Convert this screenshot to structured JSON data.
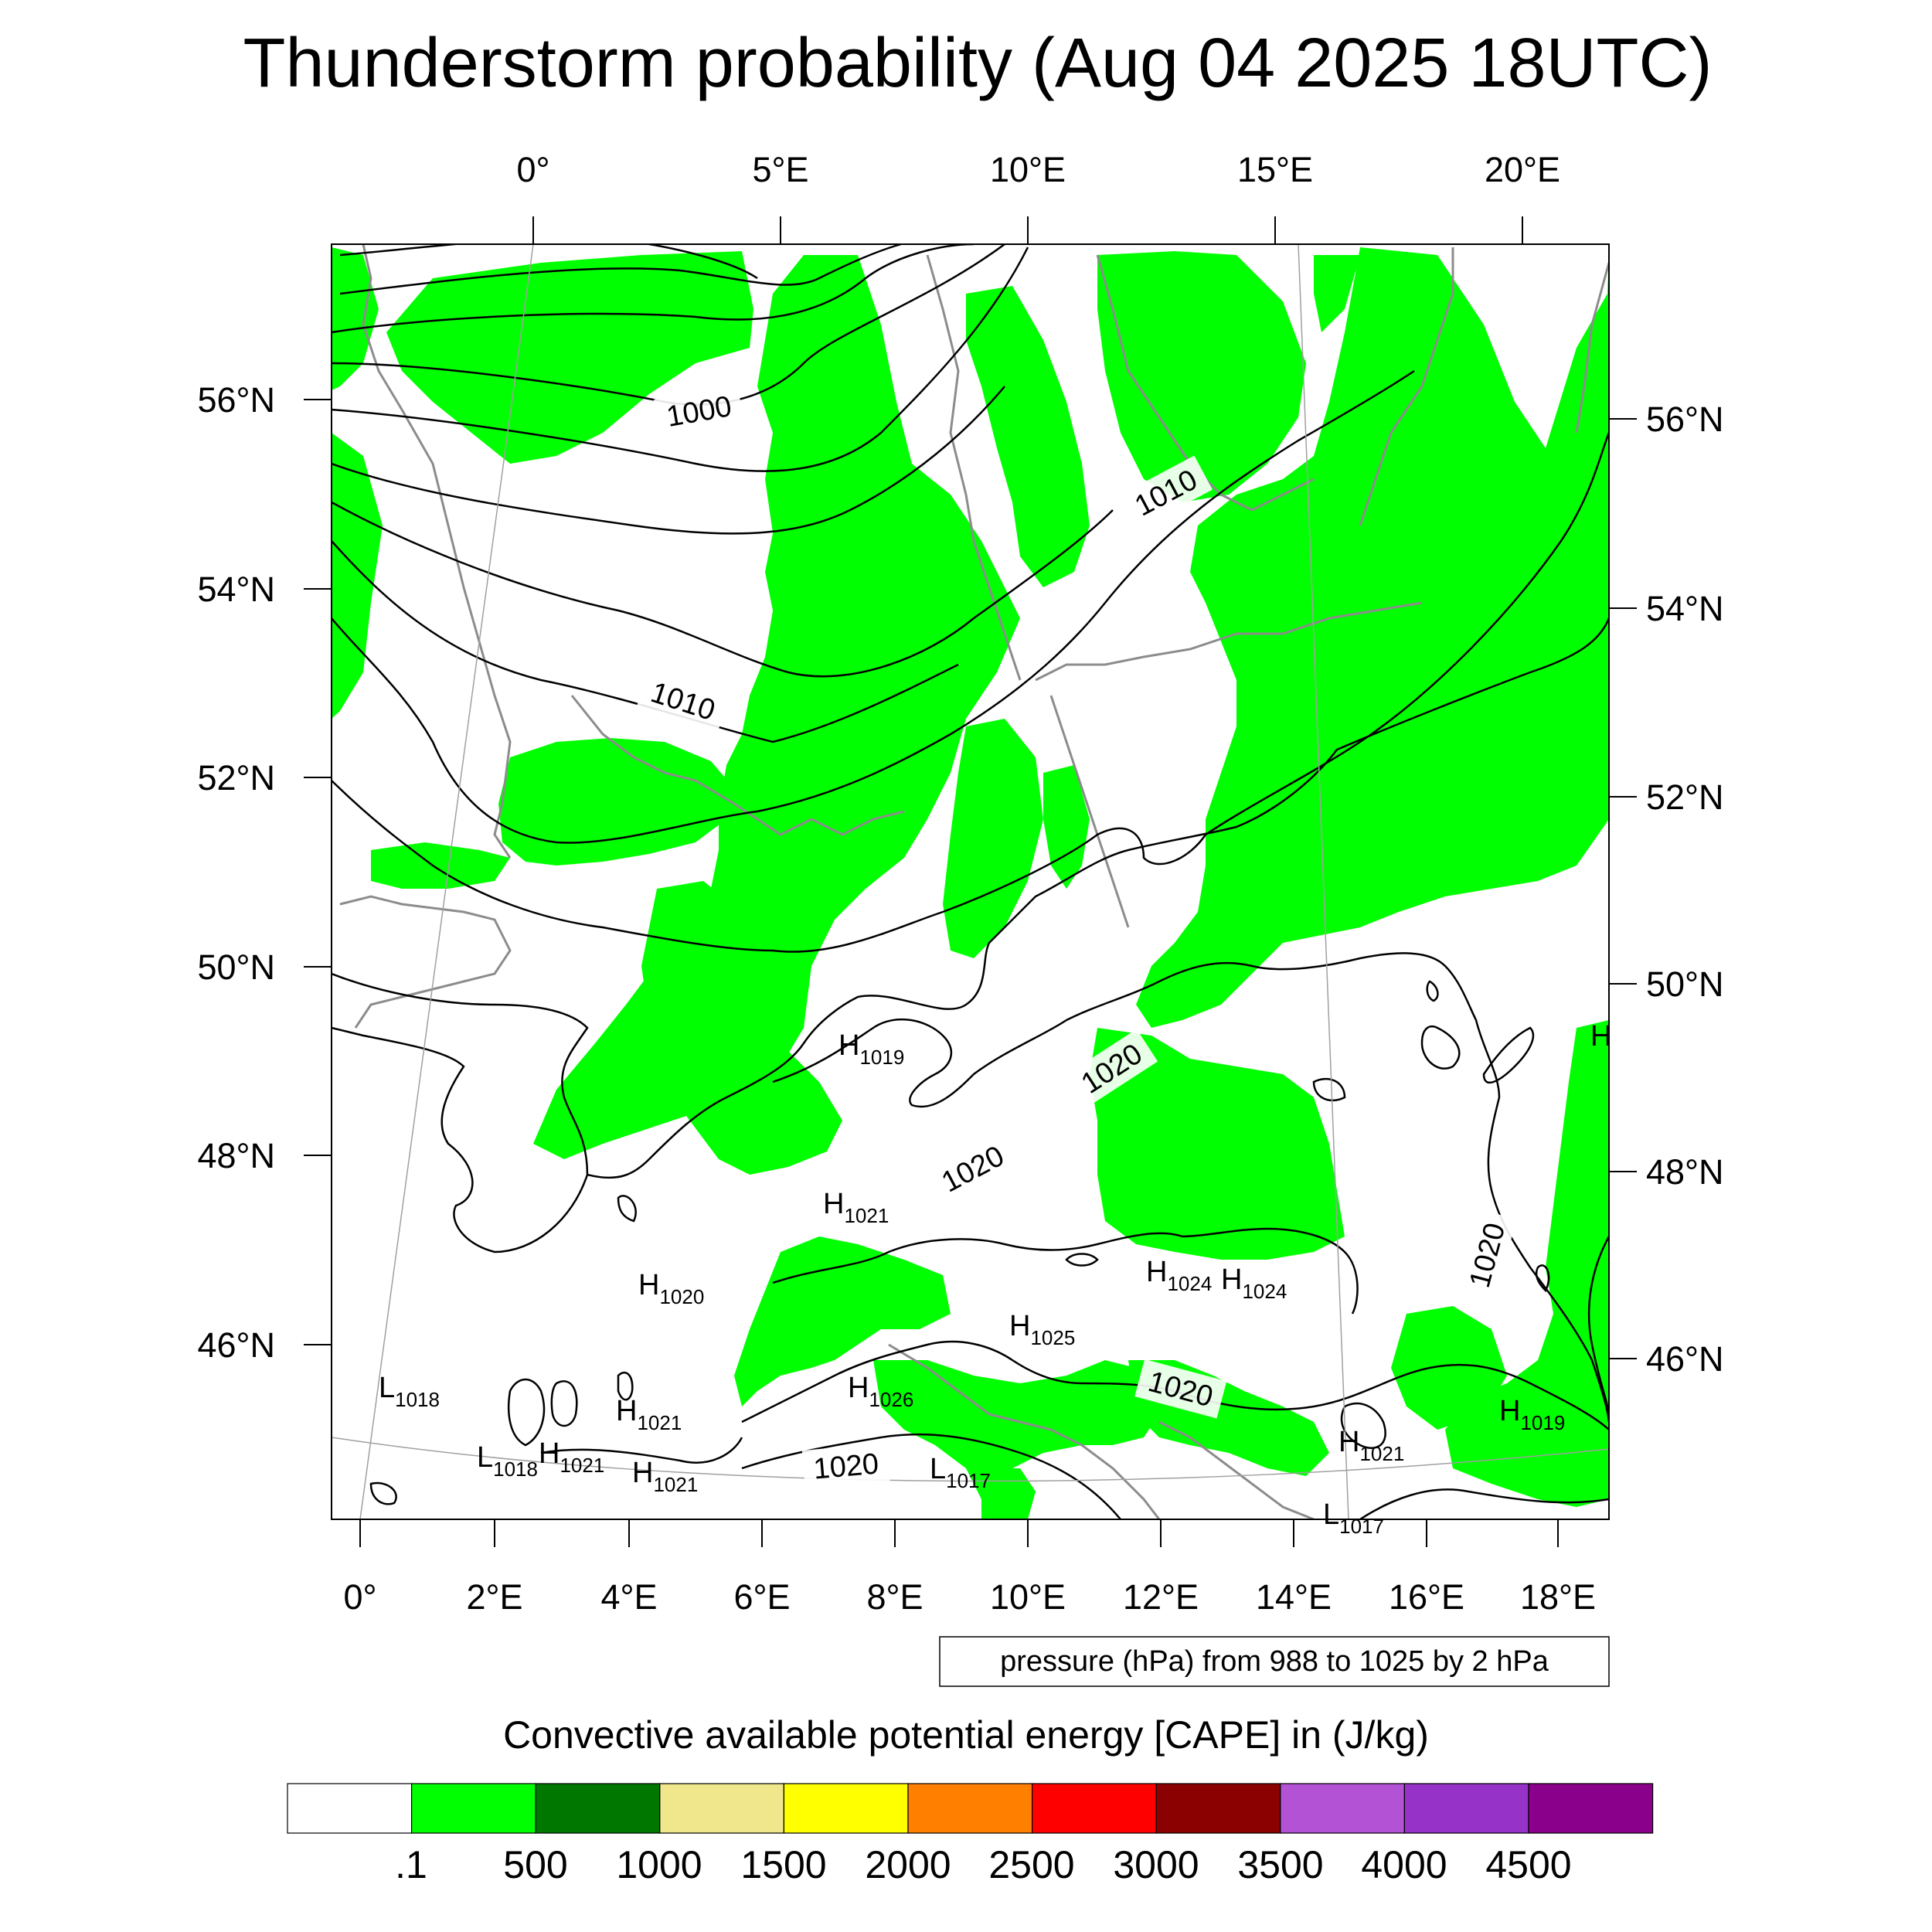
{
  "title": "Thunderstorm probability (Aug 04 2025 18UTC)",
  "top_lon_labels": [
    "0°",
    "5°E",
    "10°E",
    "15°E",
    "20°E"
  ],
  "left_lat_labels": [
    "56°N",
    "54°N",
    "52°N",
    "50°N",
    "48°N",
    "46°N"
  ],
  "right_lat_labels": [
    "56°N",
    "54°N",
    "52°N",
    "50°N",
    "48°N",
    "46°N"
  ],
  "bottom_lon_labels": [
    "0°",
    "2°E",
    "4°E",
    "6°E",
    "8°E",
    "10°E",
    "12°E",
    "14°E",
    "16°E",
    "18°E"
  ],
  "isobar_labels": [
    "1000",
    "1010",
    "1010",
    "1020",
    "1020",
    "1020",
    "1020",
    "1020"
  ],
  "pressure_centers": [
    {
      "type": "H",
      "value": "1019"
    },
    {
      "type": "H",
      "value": "1021"
    },
    {
      "type": "H",
      "value": "1020"
    },
    {
      "type": "H",
      "value": "1024"
    },
    {
      "type": "H",
      "value": "1024"
    },
    {
      "type": "H",
      "value": "1025"
    },
    {
      "type": "H",
      "value": "1026"
    },
    {
      "type": "H",
      "value": "1021"
    },
    {
      "type": "H",
      "value": "1021"
    },
    {
      "type": "H",
      "value": "1021"
    },
    {
      "type": "H",
      "value": "1021"
    },
    {
      "type": "H",
      "value": "1019"
    },
    {
      "type": "L",
      "value": "1018"
    },
    {
      "type": "L",
      "value": "1018"
    },
    {
      "type": "L",
      "value": "1017"
    },
    {
      "type": "L",
      "value": "1017"
    },
    {
      "type": "H",
      "value": ""
    }
  ],
  "contour_note": "pressure (hPa) from 988 to 1025 by 2 hPa",
  "legend": {
    "title": "Convective available potential energy [CAPE] in (J/kg)",
    "colors": [
      "#ffffff",
      "#00ff00",
      "#007800",
      "#f0e68c",
      "#ffff00",
      "#ff8000",
      "#ff0000",
      "#8b0000",
      "#b452d6",
      "#9632c8",
      "#8b008b"
    ],
    "labels": [
      ".1",
      "500",
      "1000",
      "1500",
      "2000",
      "2500",
      "3000",
      "3500",
      "4000",
      "4500"
    ]
  }
}
